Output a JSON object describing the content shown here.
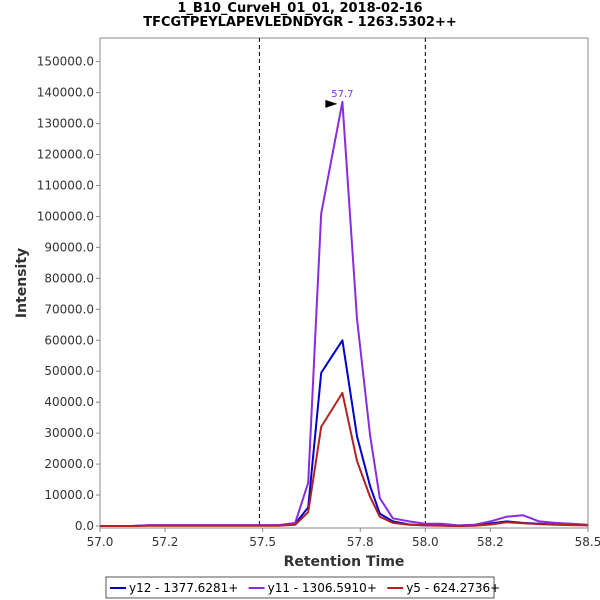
{
  "chart_data": {
    "type": "line",
    "title": "1_B10_CurveH_01_01, 2018-02-16",
    "subtitle": "TFCGTPEYLAPEVLEDNDYGR - 1263.5302++",
    "xlabel": "Retention Time",
    "ylabel": "Intensity",
    "xlim": [
      57.0,
      58.5
    ],
    "ylim": [
      0,
      157000
    ],
    "xticks": [
      "57.0",
      "57.2",
      "57.5",
      "57.8",
      "58.0",
      "58.2",
      "58.5"
    ],
    "xtick_values": [
      57.0,
      57.2,
      57.5,
      57.8,
      58.0,
      58.2,
      58.5
    ],
    "yticks": [
      "0.0",
      "10000.0",
      "20000.0",
      "30000.0",
      "40000.0",
      "50000.0",
      "60000.0",
      "70000.0",
      "80000.0",
      "90000.0",
      "100000.0",
      "110000.0",
      "120000.0",
      "130000.0",
      "140000.0",
      "150000.0"
    ],
    "ytick_values": [
      0,
      10000,
      20000,
      30000,
      40000,
      50000,
      60000,
      70000,
      80000,
      90000,
      100000,
      110000,
      120000,
      130000,
      140000,
      150000
    ],
    "boundaries": [
      57.49,
      58.0
    ],
    "annotation": {
      "label": "57.7",
      "x": 57.745,
      "y": 137000,
      "color": "#8a2be2"
    },
    "series": [
      {
        "name": "y12 - 1377.6281+",
        "color": "#0000cc",
        "x": [
          57.0,
          57.05,
          57.1,
          57.15,
          57.2,
          57.25,
          57.3,
          57.35,
          57.4,
          57.45,
          57.5,
          57.55,
          57.6,
          57.64,
          57.68,
          57.745,
          57.79,
          57.83,
          57.86,
          57.9,
          57.95,
          58.0,
          58.05,
          58.1,
          58.15,
          58.2,
          58.25,
          58.3,
          58.35,
          58.4,
          58.45,
          58.5
        ],
        "values": [
          0,
          0,
          0,
          200,
          200,
          200,
          200,
          200,
          200,
          200,
          200,
          200,
          700,
          6000,
          49500,
          60000,
          29000,
          13000,
          4000,
          1500,
          500,
          200,
          200,
          0,
          200,
          800,
          1500,
          1000,
          700,
          500,
          400,
          300
        ]
      },
      {
        "name": "y11 - 1306.5910+",
        "color": "#8a2be2",
        "x": [
          57.0,
          57.05,
          57.1,
          57.15,
          57.2,
          57.25,
          57.3,
          57.35,
          57.4,
          57.45,
          57.5,
          57.55,
          57.6,
          57.64,
          57.68,
          57.745,
          57.79,
          57.83,
          57.86,
          57.9,
          57.95,
          58.0,
          58.05,
          58.1,
          58.15,
          58.2,
          58.25,
          58.3,
          58.35,
          58.4,
          58.45,
          58.5
        ],
        "values": [
          0,
          0,
          0,
          300,
          300,
          300,
          300,
          300,
          300,
          300,
          300,
          300,
          1000,
          14000,
          101000,
          137000,
          67000,
          29500,
          9000,
          2500,
          1500,
          700,
          700,
          200,
          400,
          1500,
          3000,
          3500,
          1500,
          1000,
          700,
          400
        ]
      },
      {
        "name": "y5 - 624.2736+",
        "color": "#b22222",
        "x": [
          57.0,
          57.05,
          57.1,
          57.15,
          57.2,
          57.25,
          57.3,
          57.35,
          57.4,
          57.45,
          57.5,
          57.55,
          57.6,
          57.64,
          57.68,
          57.745,
          57.79,
          57.83,
          57.86,
          57.9,
          57.95,
          58.0,
          58.05,
          58.1,
          58.15,
          58.2,
          58.25,
          58.3,
          58.35,
          58.4,
          58.45,
          58.5
        ],
        "values": [
          0,
          0,
          0,
          100,
          100,
          100,
          100,
          100,
          100,
          100,
          100,
          100,
          400,
          4500,
          32000,
          43000,
          21000,
          9500,
          3000,
          1000,
          400,
          200,
          100,
          0,
          100,
          500,
          1200,
          900,
          600,
          400,
          300,
          200
        ]
      }
    ],
    "legend_position": "bottom"
  }
}
